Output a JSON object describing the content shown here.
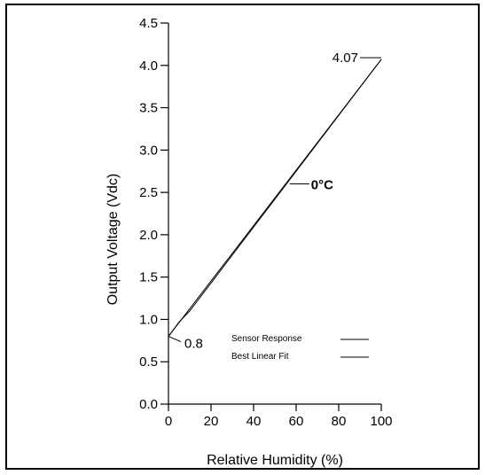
{
  "chart_data": {
    "type": "line",
    "title": "",
    "xlabel": "Relative Humidity (%)",
    "ylabel": "Output Voltage (Vdc)",
    "xlim": [
      0,
      100
    ],
    "ylim": [
      0,
      4.5
    ],
    "xticks": [
      "0",
      "20",
      "40",
      "60",
      "80",
      "100"
    ],
    "yticks": [
      "0.0",
      "0.5",
      "1.0",
      "1.5",
      "2.0",
      "2.5",
      "3.0",
      "3.5",
      "4.0",
      "4.5"
    ],
    "grid": false,
    "series": [
      {
        "name": "Sensor Response",
        "x": [
          0,
          5,
          10,
          100
        ],
        "y": [
          0.8,
          0.97,
          1.1,
          4.07
        ]
      },
      {
        "name": "Best Linear Fit",
        "x": [
          0,
          100
        ],
        "y": [
          0.8,
          4.07
        ]
      }
    ],
    "annotations": [
      {
        "text": "0.8",
        "x": 0,
        "y": 0.8
      },
      {
        "text": "4.07",
        "x": 100,
        "y": 4.07
      },
      {
        "text": "0°C",
        "x": 57,
        "y": 2.6
      }
    ],
    "legend_position": "bottom-right"
  }
}
